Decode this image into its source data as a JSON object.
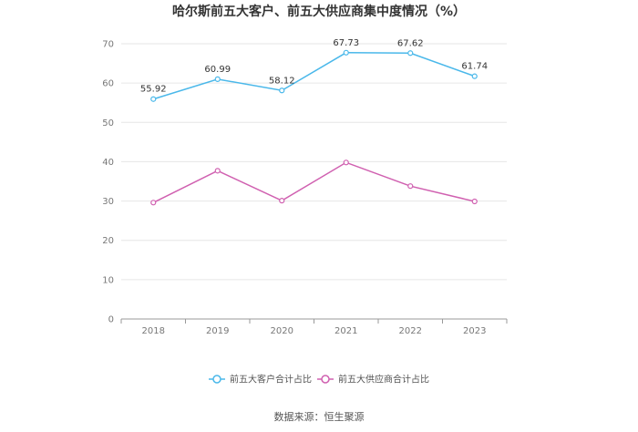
{
  "chart_data": {
    "type": "line",
    "title": "哈尔斯前五大客户、前五大供应商集中度情况（%）",
    "categories": [
      "2018",
      "2019",
      "2020",
      "2021",
      "2022",
      "2023"
    ],
    "ylim": [
      0,
      70
    ],
    "yticks": [
      "0",
      "10",
      "20",
      "30",
      "40",
      "50",
      "60",
      "70"
    ],
    "grid": true,
    "legend_position": "bottom",
    "series": [
      {
        "name": "前五大客户合计占比",
        "color": "#4ab8ea",
        "values": [
          55.92,
          60.99,
          58.12,
          67.73,
          67.62,
          61.74
        ],
        "labels": [
          "55.92",
          "60.99",
          "58.12",
          "67.73",
          "67.62",
          "61.74"
        ]
      },
      {
        "name": "前五大供应商合计占比",
        "color": "#d060b0",
        "values": [
          29.6,
          37.7,
          30.1,
          39.8,
          33.8,
          29.9
        ],
        "labels": []
      }
    ],
    "source": "数据来源：恒生聚源"
  }
}
